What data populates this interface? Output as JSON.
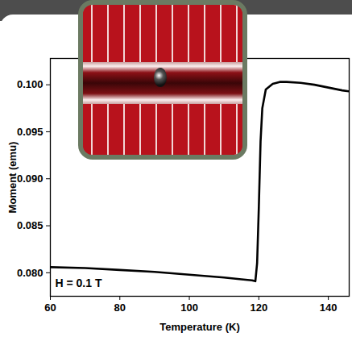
{
  "chart_data": {
    "type": "line",
    "x_label": "Temperature (K)",
    "y_label": "Moment (emu)",
    "annotation": "H = 0.1 T",
    "x": [
      60,
      70,
      80,
      90,
      100,
      110,
      115,
      118,
      119,
      119.5,
      120,
      120.5,
      121,
      122,
      124,
      126,
      128,
      132,
      136,
      140,
      144,
      146
    ],
    "series": [
      {
        "color": "#000000",
        "values": [
          0.0806,
          0.0805,
          0.0803,
          0.0801,
          0.0798,
          0.0795,
          0.0793,
          0.0792,
          0.0791,
          0.081,
          0.087,
          0.094,
          0.0975,
          0.0995,
          0.1001,
          0.1003,
          0.1003,
          0.1002,
          0.1,
          0.0997,
          0.0994,
          0.0993
        ]
      }
    ],
    "xlim": [
      60,
      146
    ],
    "ylim": [
      0.0775,
      0.1028
    ],
    "xticks": [
      60,
      80,
      100,
      120,
      140
    ],
    "yticks": [
      {
        "value": 0.08,
        "label": "0.080"
      },
      0.085,
      {
        "value": 0.09,
        "label": "0.090"
      },
      0.095,
      {
        "value": 0.1,
        "label": "0.100"
      }
    ],
    "grid": false
  }
}
